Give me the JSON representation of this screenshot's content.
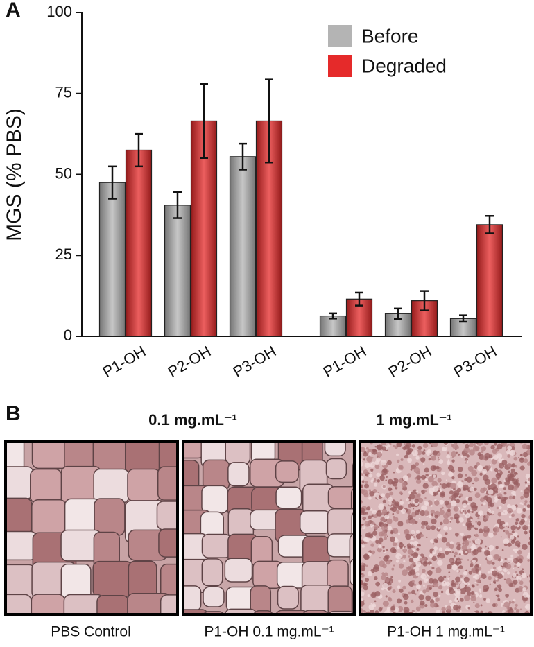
{
  "panel_labels": [
    "A",
    "B"
  ],
  "chart_data": {
    "type": "bar",
    "y_label": "MGS (% PBS)",
    "categories": [
      "P1-OH",
      "P2-OH",
      "P3-OH",
      "P1-OH",
      "P2-OH",
      "P3-OH"
    ],
    "series": [
      {
        "name": "Before",
        "color": "#b4b4b4",
        "values": [
          47.5,
          40.5,
          55.5,
          6.3,
          7,
          5.5
        ],
        "errors": [
          5,
          4,
          4,
          0.8,
          1.6,
          1
        ]
      },
      {
        "name": "Degraded",
        "color": "#e52a2a",
        "values": [
          57.5,
          66.5,
          66.5,
          11.5,
          11,
          34.5
        ],
        "errors": [
          5,
          11.5,
          12.8,
          2,
          3,
          2.7
        ]
      }
    ],
    "ylim": [
      0,
      100
    ],
    "yticks": [
      0,
      25,
      50,
      75,
      100
    ],
    "legend": "upper right"
  },
  "images": {
    "headers": [
      "0.1 mg.mL⁻¹",
      "1 mg.mL⁻¹"
    ],
    "captions": [
      "PBS Control",
      "P1-OH 0.1 mg.mL⁻¹",
      "P1-OH 1 mg.mL⁻¹"
    ]
  }
}
